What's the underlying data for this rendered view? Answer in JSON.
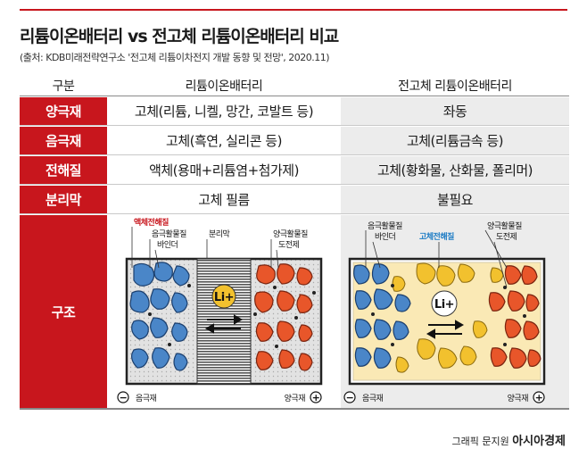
{
  "title": "리튬이온배터리 vs 전고체 리튬이온배터리 비교",
  "source": "(출처: KDB미래전략연구소 '전고체 리튬이차전지 개발 동향 및 전망', 2020.11)",
  "table": {
    "header": {
      "label": "구분",
      "col_a": "리튬이온배터리",
      "col_b": "전고체 리튬이온배터리"
    },
    "rows": [
      {
        "label": "양극재",
        "a": "고체(리튬, 니켈, 망간, 코발트 등)",
        "b": "좌동"
      },
      {
        "label": "음극재",
        "a": "고체(흑연, 실리콘 등)",
        "b": "고체(리튬금속 등)"
      },
      {
        "label": "전해질",
        "a": "액체(용매+리튬염+첨가제)",
        "b": "고체(황화물, 산화물, 폴리머)"
      },
      {
        "label": "분리막",
        "a": "고체 필름",
        "b": "불필요"
      },
      {
        "label": "구조"
      }
    ]
  },
  "diagram_a": {
    "liquid_electrolyte": "액체전해질",
    "active_material": "음극활물질",
    "binder": "바인더",
    "separator": "분리막",
    "cathode_active": "양극활물질",
    "conductive": "도전제",
    "ion": "Li+",
    "anode": "음극재",
    "cathode": "양극재",
    "minus": "−",
    "plus": "+"
  },
  "diagram_b": {
    "active_material": "음극활물질",
    "binder": "바인더",
    "solid_electrolyte": "고체전해질",
    "cathode_active": "양극활물질",
    "conductive": "도전제",
    "ion": "Li+",
    "anode": "음극재",
    "cathode": "양극재",
    "minus": "−",
    "plus": "+"
  },
  "footer": {
    "credit": "그래픽 문지원",
    "brand": "아시아경제"
  },
  "colors": {
    "accent": "#c8161d",
    "anode_particle": "#4a86c8",
    "cathode_particle": "#e8562a",
    "solid_electrolyte": "#f2c12e",
    "label_blue": "#1a7ac4"
  }
}
